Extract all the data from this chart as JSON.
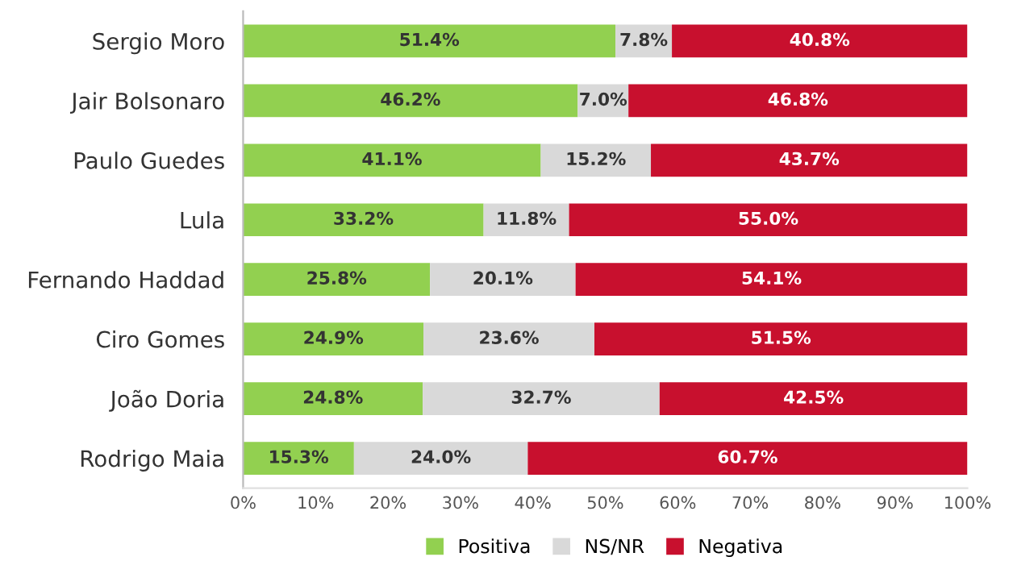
{
  "chart_data": {
    "type": "bar",
    "orientation": "horizontal",
    "stacked": true,
    "categories": [
      "Sergio Moro",
      "Jair Bolsonaro",
      "Paulo Guedes",
      "Lula",
      "Fernando Haddad",
      "Ciro Gomes",
      "João Doria",
      "Rodrigo Maia"
    ],
    "series": [
      {
        "name": "Positiva",
        "color": "#92d050",
        "values": [
          51.4,
          46.2,
          41.1,
          33.2,
          25.8,
          24.9,
          24.8,
          15.3
        ],
        "value_labels": [
          "51.4%",
          "46.2%",
          "41.1%",
          "33.2%",
          "25.8%",
          "24.9%",
          "24.8%",
          "15.3%"
        ]
      },
      {
        "name": "NS/NR",
        "color": "#d9d9d9",
        "values": [
          7.8,
          7.0,
          15.2,
          11.8,
          20.1,
          23.6,
          32.7,
          24.0
        ],
        "value_labels": [
          "7.8%",
          "7.0%",
          "15.2%",
          "11.8%",
          "20.1%",
          "23.6%",
          "32.7%",
          "24.0%"
        ]
      },
      {
        "name": "Negativa",
        "color": "#c8102e",
        "values": [
          40.8,
          46.8,
          43.7,
          55.0,
          54.1,
          51.5,
          42.5,
          60.7
        ],
        "value_labels": [
          "40.8%",
          "46.8%",
          "43.7%",
          "55.0%",
          "54.1%",
          "51.5%",
          "42.5%",
          "60.7%"
        ]
      }
    ],
    "xlim": [
      0,
      100
    ],
    "xticks": [
      {
        "value": 0,
        "label": "0%"
      },
      {
        "value": 10,
        "label": "10%"
      },
      {
        "value": 20,
        "label": "20%"
      },
      {
        "value": 30,
        "label": "30%"
      },
      {
        "value": 40,
        "label": "40%"
      },
      {
        "value": 50,
        "label": "50%"
      },
      {
        "value": 60,
        "label": "60%"
      },
      {
        "value": 70,
        "label": "70%"
      },
      {
        "value": 80,
        "label": "80%"
      },
      {
        "value": 90,
        "label": "90%"
      },
      {
        "value": 100,
        "label": "100%"
      }
    ],
    "legend": "bottom",
    "grid": false
  }
}
